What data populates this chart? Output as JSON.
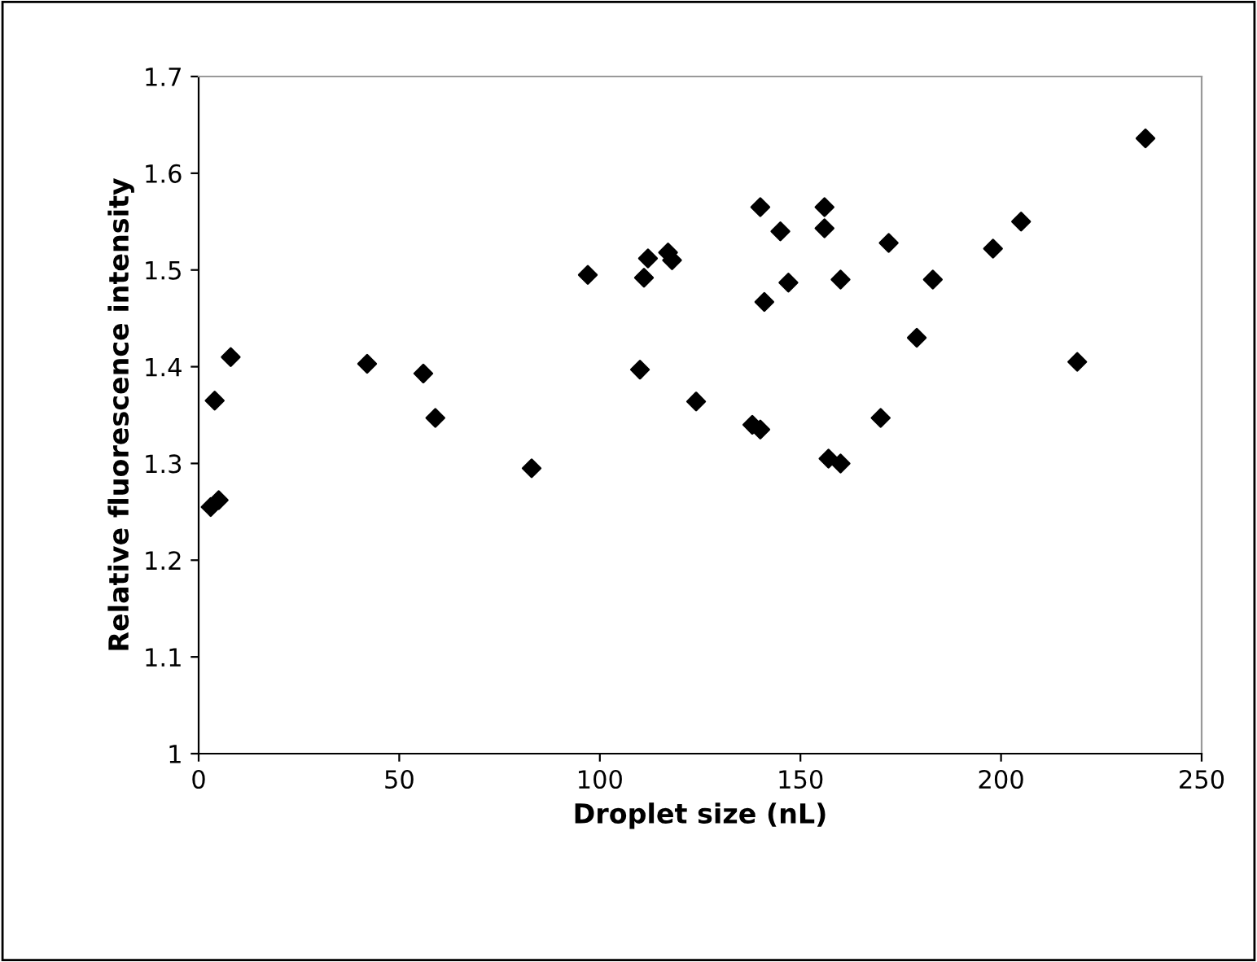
{
  "chart_data": {
    "type": "scatter",
    "xlabel": "Droplet size (nL)",
    "ylabel": "Relative fluorescence intensity",
    "x": [
      3,
      5,
      4,
      8,
      42,
      56,
      59,
      83,
      97,
      110,
      111,
      112,
      117,
      118,
      124,
      138,
      140,
      140,
      141,
      145,
      147,
      156,
      156,
      157,
      160,
      160,
      170,
      172,
      179,
      183,
      198,
      205,
      219,
      236
    ],
    "series": [
      {
        "color": "#000000",
        "values": [
          1.255,
          1.262,
          1.365,
          1.41,
          1.403,
          1.393,
          1.347,
          1.295,
          1.495,
          1.397,
          1.492,
          1.512,
          1.518,
          1.51,
          1.364,
          1.34,
          1.335,
          1.565,
          1.467,
          1.54,
          1.487,
          1.565,
          1.543,
          1.305,
          1.3,
          1.49,
          1.347,
          1.528,
          1.43,
          1.49,
          1.522,
          1.55,
          1.405,
          1.636
        ]
      }
    ],
    "xlim": [
      0,
      250
    ],
    "xticks": [
      0,
      50,
      100,
      150,
      200,
      250
    ],
    "ylim": [
      1,
      1.7
    ],
    "yticks": [
      {
        "value": 1,
        "label": "1"
      },
      1.1,
      1.2,
      1.3,
      1.4,
      1.5,
      1.6,
      1.7
    ],
    "marker": "diamond",
    "grid": false,
    "legend": false
  }
}
